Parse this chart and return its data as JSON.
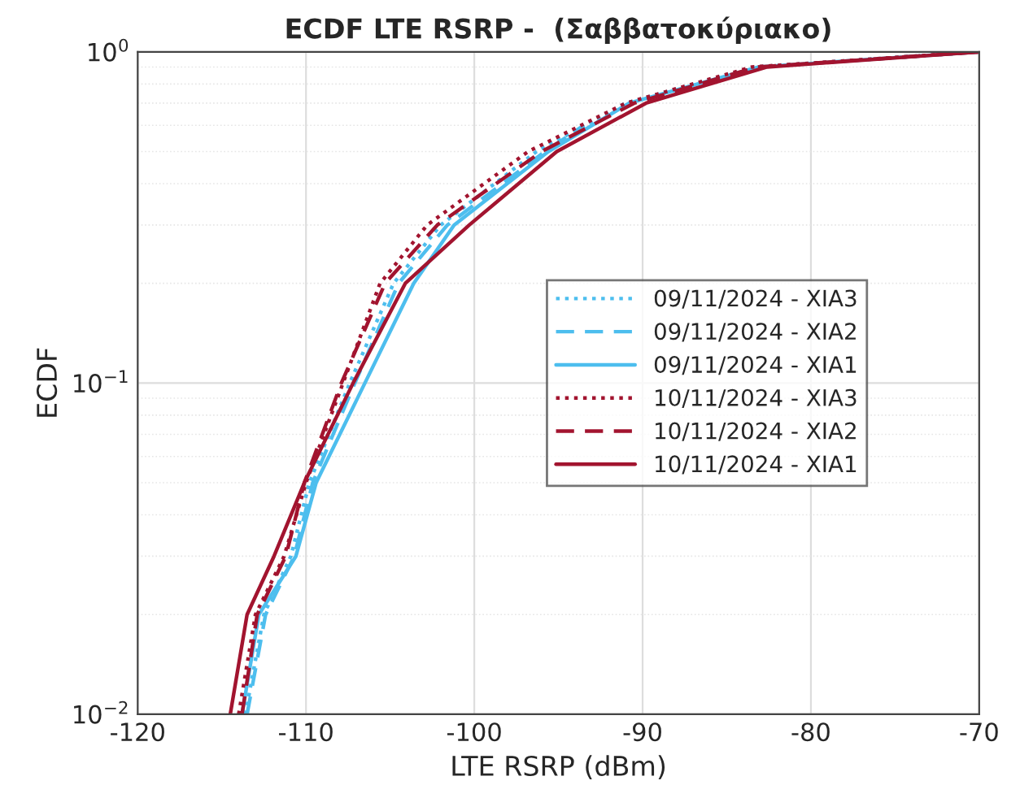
{
  "chart_data": {
    "type": "line",
    "title": "ECDF LTE RSRP -  (Σαββατοκύριακο)",
    "xlabel": "LTE RSRP (dBm)",
    "ylabel": "ECDF",
    "xlim": [
      -120,
      -70
    ],
    "xticks": [
      -120,
      -110,
      -100,
      -90,
      -80,
      -70
    ],
    "ylim": [
      0.01,
      1
    ],
    "yticks": [
      {
        "value": 0.01,
        "label": "10$^{−2}$"
      },
      {
        "value": 0.1,
        "label": "10$^{−1}$"
      },
      {
        "value": 1,
        "label": "10$^{0}$"
      }
    ],
    "log": "y",
    "grid": true,
    "legend": "right",
    "series": [
      {
        "name": "09/11/2024 - XIA3",
        "color": "#4dbeee",
        "line_style": "dotted",
        "x": [
          -113.6,
          -112.5,
          -110.9,
          -109.8,
          -107.4,
          -104.8,
          -102.0,
          -96.3,
          -91.0,
          -83.3,
          -70
        ],
        "values": [
          0.01,
          0.02,
          0.03,
          0.05,
          0.1,
          0.2,
          0.3,
          0.5,
          0.7,
          0.9,
          1
        ]
      },
      {
        "name": "09/11/2024 - XIA2",
        "color": "#4dbeee",
        "line_style": "dashed",
        "x": [
          -113.5,
          -112.4,
          -110.7,
          -109.6,
          -107.1,
          -104.5,
          -101.6,
          -95.8,
          -93.5
        ],
        "values": [
          0.01,
          0.02,
          0.03,
          0.05,
          0.1,
          0.2,
          0.3,
          0.5,
          0.6
        ]
      },
      {
        "name": "09/11/2024 - XIA1",
        "color": "#4dbeee",
        "line_style": "solid",
        "x": [
          -113.8,
          -112.8,
          -110.6,
          -109.4,
          -106.5,
          -103.6,
          -101.2,
          -95.6,
          -90.8,
          -83.1,
          -70
        ],
        "values": [
          0.01,
          0.02,
          0.03,
          0.05,
          0.1,
          0.2,
          0.3,
          0.5,
          0.7,
          0.9,
          1
        ]
      },
      {
        "name": "10/11/2024 - XIA3",
        "color": "#a2142f",
        "line_style": "dotted",
        "x": [
          -114.0,
          -113.0,
          -111.3,
          -110.0,
          -107.8,
          -105.6,
          -102.8,
          -96.8,
          -91.0,
          -83.5,
          -70
        ],
        "values": [
          0.01,
          0.02,
          0.03,
          0.05,
          0.1,
          0.2,
          0.3,
          0.5,
          0.7,
          0.9,
          1
        ]
      },
      {
        "name": "10/11/2024 - XIA2",
        "color": "#a2142f",
        "line_style": "dashed",
        "x": [
          -113.8,
          -112.9,
          -111.2,
          -110.1,
          -107.9,
          -105.3,
          -102.2,
          -96.0,
          -90.5,
          -83.2,
          -70
        ],
        "values": [
          0.01,
          0.02,
          0.03,
          0.05,
          0.1,
          0.2,
          0.3,
          0.5,
          0.7,
          0.9,
          1
        ]
      },
      {
        "name": "10/11/2024 - XIA1",
        "color": "#a2142f",
        "line_style": "solid",
        "x": [
          -114.5,
          -113.5,
          -111.9,
          -110.1,
          -107.2,
          -104.1,
          -100.3,
          -95.1,
          -89.8,
          -82.6,
          -70
        ],
        "values": [
          0.01,
          0.02,
          0.03,
          0.05,
          0.1,
          0.2,
          0.3,
          0.5,
          0.7,
          0.9,
          1
        ]
      }
    ]
  }
}
